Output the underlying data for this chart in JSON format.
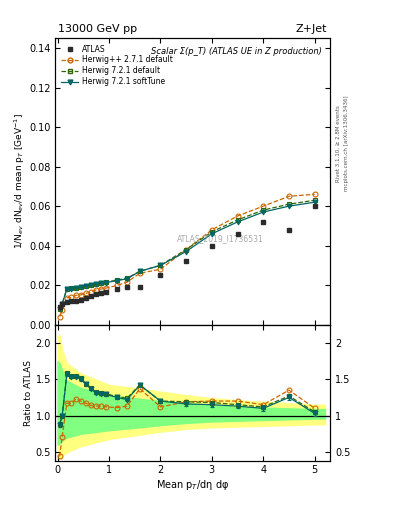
{
  "title_left": "13000 GeV pp",
  "title_right": "Z+Jet",
  "plot_title": "Scalar Σ(p_T) (ATLAS UE in Z production)",
  "ylabel_main": "1/N$_{ev}$ dN$_{ev}$/d mean p$_T$ [GeV$^{-1}$]",
  "ylabel_ratio": "Ratio to ATLAS",
  "xlabel": "Mean p$_T$/dη dφ",
  "watermark": "ATLAS_2019_I1736531",
  "right_label_top": "Rivet 3.1.10, ≥ 2.8M events",
  "right_label_bot": "mcplots.cern.ch [arXiv:1306.3436]",
  "atlas_x": [
    0.04,
    0.09,
    0.18,
    0.27,
    0.36,
    0.45,
    0.55,
    0.65,
    0.75,
    0.85,
    0.95,
    1.15,
    1.35,
    1.6,
    2.0,
    2.5,
    3.0,
    3.5,
    4.0,
    4.5,
    5.0
  ],
  "atlas_y": [
    0.009,
    0.0105,
    0.0115,
    0.0118,
    0.012,
    0.0125,
    0.0135,
    0.0145,
    0.0155,
    0.016,
    0.0165,
    0.0178,
    0.019,
    0.019,
    0.025,
    0.032,
    0.04,
    0.046,
    0.052,
    0.048,
    0.06
  ],
  "atlas_yerr": [
    0.0003,
    0.0003,
    0.0003,
    0.0003,
    0.0003,
    0.0003,
    0.0003,
    0.0003,
    0.0003,
    0.0003,
    0.0003,
    0.0003,
    0.0003,
    0.0003,
    0.0005,
    0.0006,
    0.0007,
    0.0008,
    0.001,
    0.001,
    0.001
  ],
  "hpp_x": [
    0.04,
    0.09,
    0.18,
    0.27,
    0.36,
    0.45,
    0.55,
    0.65,
    0.75,
    0.85,
    0.95,
    1.15,
    1.35,
    1.6,
    2.0,
    2.5,
    3.0,
    3.5,
    4.0,
    4.5,
    5.0
  ],
  "hpp_y": [
    0.004,
    0.0075,
    0.0135,
    0.0138,
    0.0148,
    0.015,
    0.0158,
    0.0165,
    0.0175,
    0.018,
    0.0185,
    0.0198,
    0.0215,
    0.026,
    0.028,
    0.038,
    0.048,
    0.055,
    0.06,
    0.065,
    0.066
  ],
  "h721d_x": [
    0.04,
    0.09,
    0.18,
    0.27,
    0.36,
    0.45,
    0.55,
    0.65,
    0.75,
    0.85,
    0.95,
    1.15,
    1.35,
    1.6,
    2.0,
    2.5,
    3.0,
    3.5,
    4.0,
    4.5,
    5.0
  ],
  "h721d_y": [
    0.008,
    0.0105,
    0.0182,
    0.0183,
    0.0185,
    0.019,
    0.0195,
    0.02,
    0.0205,
    0.021,
    0.0215,
    0.0225,
    0.0235,
    0.027,
    0.03,
    0.038,
    0.047,
    0.053,
    0.058,
    0.061,
    0.063
  ],
  "h721s_x": [
    0.04,
    0.09,
    0.18,
    0.27,
    0.36,
    0.45,
    0.55,
    0.65,
    0.75,
    0.85,
    0.95,
    1.15,
    1.35,
    1.6,
    2.0,
    2.5,
    3.0,
    3.5,
    4.0,
    4.5,
    5.0
  ],
  "h721s_y": [
    0.0078,
    0.0105,
    0.018,
    0.018,
    0.0183,
    0.0188,
    0.0193,
    0.0198,
    0.0203,
    0.0208,
    0.0213,
    0.0222,
    0.0232,
    0.027,
    0.03,
    0.037,
    0.046,
    0.052,
    0.057,
    0.06,
    0.062
  ],
  "ratio_x": [
    0.04,
    0.09,
    0.18,
    0.27,
    0.36,
    0.45,
    0.55,
    0.65,
    0.75,
    0.85,
    0.95,
    1.15,
    1.35,
    1.6,
    2.0,
    2.5,
    3.0,
    3.5,
    4.0,
    4.5,
    5.0
  ],
  "ratio_hpp_y": [
    0.44,
    0.71,
    1.17,
    1.17,
    1.23,
    1.2,
    1.17,
    1.14,
    1.13,
    1.13,
    1.12,
    1.11,
    1.13,
    1.37,
    1.12,
    1.19,
    1.2,
    1.2,
    1.15,
    1.35,
    1.1
  ],
  "ratio_h721d_y": [
    0.89,
    1.0,
    1.58,
    1.55,
    1.54,
    1.52,
    1.44,
    1.38,
    1.32,
    1.31,
    1.3,
    1.26,
    1.24,
    1.42,
    1.2,
    1.19,
    1.18,
    1.15,
    1.12,
    1.27,
    1.05
  ],
  "ratio_h721s_y": [
    0.87,
    1.0,
    1.57,
    1.53,
    1.53,
    1.5,
    1.43,
    1.37,
    1.31,
    1.3,
    1.29,
    1.25,
    1.22,
    1.42,
    1.2,
    1.16,
    1.15,
    1.13,
    1.1,
    1.25,
    1.03
  ],
  "ratio_h721s_yerr": [
    0.02,
    0.02,
    0.02,
    0.02,
    0.02,
    0.02,
    0.02,
    0.02,
    0.02,
    0.02,
    0.02,
    0.02,
    0.02,
    0.03,
    0.03,
    0.03,
    0.03,
    0.03,
    0.03,
    0.03,
    0.03
  ],
  "band_yellow_x": [
    0.0,
    0.04,
    0.09,
    0.18,
    0.45,
    1.0,
    1.6,
    2.0,
    2.5,
    3.0,
    3.5,
    4.0,
    4.5,
    5.0,
    5.2
  ],
  "band_yellow_lo": [
    0.4,
    0.4,
    0.45,
    0.5,
    0.58,
    0.68,
    0.74,
    0.78,
    0.82,
    0.84,
    0.85,
    0.86,
    0.87,
    0.88,
    0.88
  ],
  "band_yellow_hi": [
    2.1,
    2.1,
    1.9,
    1.72,
    1.58,
    1.42,
    1.37,
    1.33,
    1.28,
    1.24,
    1.21,
    1.19,
    1.17,
    1.15,
    1.15
  ],
  "band_green_x": [
    0.0,
    0.04,
    0.09,
    0.18,
    0.45,
    1.0,
    1.6,
    2.0,
    2.5,
    3.0,
    3.5,
    4.0,
    4.5,
    5.0,
    5.2
  ],
  "band_green_lo": [
    0.6,
    0.62,
    0.66,
    0.7,
    0.75,
    0.8,
    0.84,
    0.87,
    0.9,
    0.92,
    0.93,
    0.94,
    0.95,
    0.96,
    0.96
  ],
  "band_green_hi": [
    1.75,
    1.72,
    1.62,
    1.48,
    1.38,
    1.28,
    1.23,
    1.2,
    1.17,
    1.14,
    1.12,
    1.11,
    1.1,
    1.09,
    1.09
  ],
  "color_atlas": "#2b2b2b",
  "color_hpp": "#cc6600",
  "color_h721d": "#336600",
  "color_h721s": "#006666",
  "color_yellow": "#ffff80",
  "color_green": "#80ff80",
  "xlim": [
    -0.05,
    5.3
  ],
  "ylim_main": [
    0.0,
    0.145
  ],
  "ylim_ratio": [
    0.38,
    2.25
  ],
  "yticks_main": [
    0.0,
    0.02,
    0.04,
    0.06,
    0.08,
    0.1,
    0.12,
    0.14
  ],
  "yticks_ratio": [
    0.5,
    1.0,
    1.5,
    2.0
  ]
}
